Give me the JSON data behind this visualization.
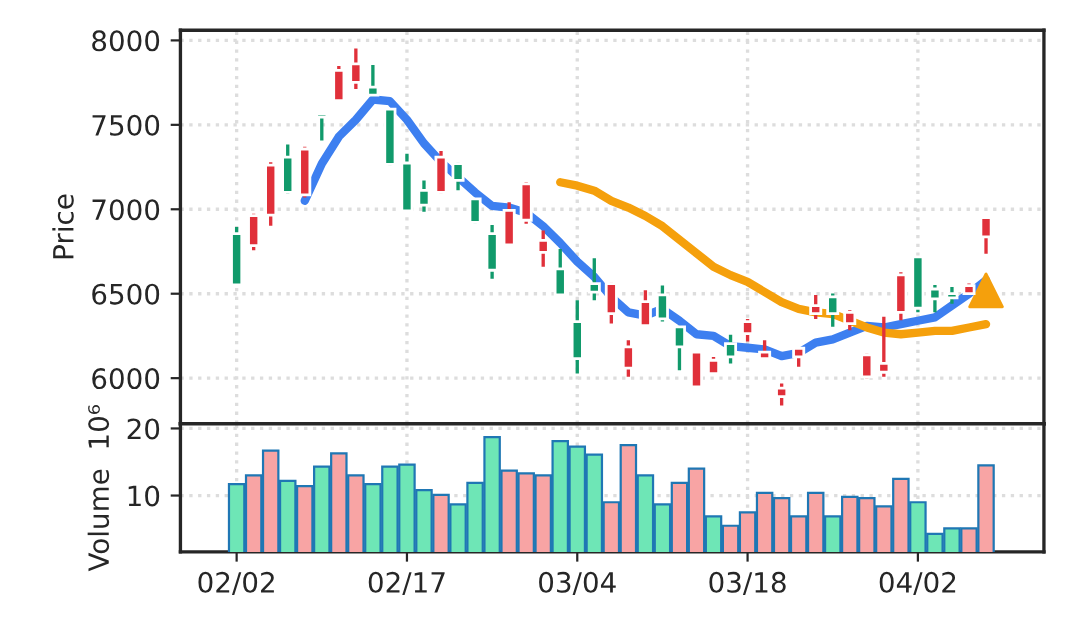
{
  "chart_data": [
    {
      "type": "candlestick",
      "ylabel": "Price",
      "categories": [
        null,
        null,
        null,
        null,
        null,
        null,
        null,
        null,
        null,
        null,
        null,
        null,
        null,
        null,
        null,
        null,
        null,
        null,
        null,
        null,
        null,
        null,
        null,
        null,
        null,
        null,
        null,
        null,
        null,
        null,
        null,
        null,
        null,
        null,
        null,
        null,
        null,
        null,
        null,
        null,
        null,
        null,
        null,
        null,
        null
      ],
      "ohlc": [
        [
          6552,
          6895,
          6552,
          6856
        ],
        [
          6962,
          6974,
          6757,
          6785
        ],
        [
          7262,
          7278,
          6903,
          6966
        ],
        [
          7100,
          7384,
          7092,
          7309
        ],
        [
          7357,
          7370,
          7070,
          7085
        ],
        [
          7546,
          7570,
          7408,
          7565
        ],
        [
          7822,
          7849,
          7640,
          7644
        ],
        [
          7861,
          7952,
          7712,
          7751
        ],
        [
          7676,
          7854,
          7670,
          7723
        ],
        [
          7266,
          7600,
          7260,
          7593
        ],
        [
          6990,
          7329,
          6985,
          7274
        ],
        [
          7025,
          7171,
          6985,
          7112
        ],
        [
          7309,
          7345,
          7095,
          7100
        ],
        [
          7171,
          7275,
          7112,
          7270
        ],
        [
          6923,
          7065,
          6918,
          7061
        ],
        [
          6639,
          6907,
          6588,
          6856
        ],
        [
          6994,
          7041,
          6785,
          6789
        ],
        [
          7151,
          7160,
          6915,
          6935
        ],
        [
          6816,
          6875,
          6659,
          6745
        ],
        [
          6493,
          6765,
          6490,
          6647
        ],
        [
          6115,
          6461,
          6027,
          6335
        ],
        [
          6509,
          6710,
          6461,
          6560
        ],
        [
          6560,
          6565,
          6323,
          6382
        ],
        [
          6185,
          6225,
          6008,
          6059
        ],
        [
          6453,
          6521,
          6304,
          6311
        ],
        [
          6351,
          6548,
          6335,
          6493
        ],
        [
          6185,
          6310,
          6047,
          6304
        ],
        [
          6154,
          6160,
          5945,
          5949
        ],
        [
          6106,
          6126,
          6020,
          6027
        ],
        [
          6126,
          6257,
          6087,
          6205
        ],
        [
          6335,
          6351,
          6217,
          6264
        ],
        [
          6154,
          6225,
          6110,
          6115
        ],
        [
          5941,
          5968,
          5838,
          5890
        ],
        [
          6177,
          6185,
          6067,
          6126
        ],
        [
          6430,
          6493,
          6351,
          6382
        ],
        [
          6382,
          6501,
          6304,
          6481
        ],
        [
          6390,
          6402,
          6284,
          6323
        ],
        [
          6138,
          6145,
          6000,
          6008
        ],
        [
          6087,
          6363,
          6008,
          6035
        ],
        [
          6611,
          6627,
          6343,
          6390
        ],
        [
          6414,
          6722,
          6390,
          6718
        ],
        [
          6469,
          6552,
          6390,
          6528
        ],
        [
          6475,
          6540,
          6441,
          6501
        ],
        [
          6548,
          6560,
          6495,
          6501
        ],
        [
          6950,
          6955,
          6737,
          6836
        ]
      ],
      "colors": [
        "#119a6b",
        "#e0303a",
        "#e0303a",
        "#119a6b",
        "#e0303a",
        "#119a6b",
        "#e0303a",
        "#e0303a",
        "#119a6b",
        "#119a6b",
        "#119a6b",
        "#119a6b",
        "#e0303a",
        "#119a6b",
        "#119a6b",
        "#119a6b",
        "#e0303a",
        "#e0303a",
        "#e0303a",
        "#119a6b",
        "#119a6b",
        "#119a6b",
        "#e0303a",
        "#e0303a",
        "#e0303a",
        "#119a6b",
        "#119a6b",
        "#e0303a",
        "#e0303a",
        "#119a6b",
        "#e0303a",
        "#e0303a",
        "#e0303a",
        "#e0303a",
        "#e0303a",
        "#119a6b",
        "#e0303a",
        "#e0303a",
        "#e0303a",
        "#e0303a",
        "#119a6b",
        "#119a6b",
        "#119a6b",
        "#e0303a",
        "#e0303a"
      ],
      "series": [
        {
          "type": "line",
          "color": "#3d7ff0",
          "values": [
            null,
            null,
            null,
            null,
            7050,
            7270,
            7430,
            7530,
            7650,
            7640,
            7530,
            7390,
            7280,
            7190,
            7100,
            7020,
            7010,
            6980,
            6900,
            6800,
            6690,
            6600,
            6480,
            6390,
            6370,
            6410,
            6340,
            6260,
            6250,
            6190,
            6180,
            6170,
            6130,
            6150,
            6210,
            6230,
            6270,
            6310,
            6300,
            6320,
            6340,
            6360,
            6430,
            6500,
            6580
          ]
        },
        {
          "type": "line",
          "color": "#f5a00c",
          "values": [
            null,
            null,
            null,
            null,
            null,
            null,
            null,
            null,
            null,
            null,
            null,
            null,
            null,
            null,
            null,
            null,
            null,
            null,
            null,
            7160,
            7140,
            7110,
            7050,
            7010,
            6960,
            6900,
            6820,
            6740,
            6660,
            6610,
            6570,
            6510,
            6450,
            6410,
            6390,
            6380,
            6340,
            6300,
            6270,
            6260,
            6270,
            6280,
            6280,
            6300,
            6320
          ]
        },
        {
          "type": "scatter",
          "marker": "triangle",
          "color": "#f5a00c",
          "values": [
            null,
            null,
            null,
            null,
            null,
            null,
            null,
            null,
            null,
            null,
            null,
            null,
            null,
            null,
            null,
            null,
            null,
            null,
            null,
            null,
            null,
            null,
            null,
            null,
            null,
            null,
            null,
            null,
            null,
            null,
            null,
            null,
            null,
            null,
            null,
            null,
            null,
            null,
            null,
            null,
            null,
            null,
            null,
            null,
            6520
          ]
        }
      ],
      "ylim": [
        5730,
        8060
      ],
      "yticks": [
        6000,
        6500,
        7000,
        7500,
        8000
      ],
      "grid": true,
      "tick_labels": "y"
    },
    {
      "type": "bar",
      "ylabel": "Volume  10⁶",
      "categories": [
        "02/02",
        null,
        null,
        null,
        null,
        null,
        null,
        null,
        null,
        null,
        "02/17",
        null,
        null,
        null,
        null,
        null,
        null,
        null,
        null,
        null,
        "03/04",
        null,
        null,
        null,
        null,
        null,
        null,
        null,
        null,
        null,
        "03/18",
        null,
        null,
        null,
        null,
        null,
        null,
        null,
        null,
        null,
        "04/02",
        null,
        null,
        null,
        null
      ],
      "values": [
        11.7,
        13.0,
        16.7,
        12.2,
        11.4,
        14.3,
        16.3,
        13.0,
        11.7,
        14.3,
        14.6,
        10.8,
        10.1,
        8.7,
        11.9,
        18.7,
        13.7,
        13.3,
        13.0,
        18.1,
        17.3,
        16.1,
        9.0,
        17.5,
        13.0,
        8.7,
        11.9,
        14.0,
        6.9,
        5.5,
        7.5,
        10.4,
        9.6,
        6.9,
        10.4,
        6.9,
        9.8,
        9.6,
        8.4,
        12.5,
        9.0,
        4.3,
        5.1,
        5.1,
        14.5
      ],
      "colors": [
        "#6ee6b6",
        "#f8a4a4",
        "#f8a4a4",
        "#6ee6b6",
        "#f8a4a4",
        "#6ee6b6",
        "#f8a4a4",
        "#f8a4a4",
        "#6ee6b6",
        "#6ee6b6",
        "#6ee6b6",
        "#6ee6b6",
        "#f8a4a4",
        "#6ee6b6",
        "#6ee6b6",
        "#6ee6b6",
        "#f8a4a4",
        "#f8a4a4",
        "#f8a4a4",
        "#6ee6b6",
        "#6ee6b6",
        "#6ee6b6",
        "#f8a4a4",
        "#f8a4a4",
        "#6ee6b6",
        "#6ee6b6",
        "#f8a4a4",
        "#f8a4a4",
        "#6ee6b6",
        "#f8a4a4",
        "#f8a4a4",
        "#f8a4a4",
        "#f8a4a4",
        "#f8a4a4",
        "#f8a4a4",
        "#6ee6b6",
        "#f8a4a4",
        "#f8a4a4",
        "#f8a4a4",
        "#f8a4a4",
        "#6ee6b6",
        "#6ee6b6",
        "#6ee6b6",
        "#f8a4a4",
        "#f8a4a4"
      ],
      "ylim": [
        1.6,
        20.7
      ],
      "yticks": [
        10,
        20
      ],
      "grid": true
    }
  ]
}
